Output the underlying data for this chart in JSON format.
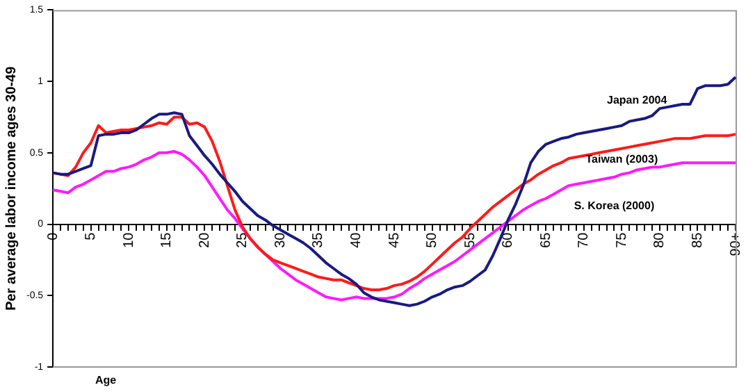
{
  "chart_data": {
    "type": "line",
    "xlabel": "Age",
    "ylabel": "Per average labor income ages 30-49",
    "categories": [
      "0",
      null,
      null,
      null,
      null,
      "5",
      null,
      null,
      null,
      null,
      "10",
      null,
      null,
      null,
      null,
      "15",
      null,
      null,
      null,
      null,
      "20",
      null,
      null,
      null,
      null,
      "25",
      null,
      null,
      null,
      null,
      "30",
      null,
      null,
      null,
      null,
      "35",
      null,
      null,
      null,
      null,
      "40",
      null,
      null,
      null,
      null,
      "45",
      null,
      null,
      null,
      null,
      "50",
      null,
      null,
      null,
      null,
      "55",
      null,
      null,
      null,
      null,
      "60",
      null,
      null,
      null,
      null,
      "65",
      null,
      null,
      null,
      null,
      "70",
      null,
      null,
      null,
      null,
      "75",
      null,
      null,
      null,
      null,
      "80",
      null,
      null,
      null,
      null,
      "85",
      null,
      null,
      null,
      null,
      "90+"
    ],
    "ylim": [
      -1,
      1.5
    ],
    "yticks": [
      -1,
      -0.5,
      0,
      0.5,
      1,
      1.5
    ],
    "grid": false,
    "legend": false,
    "marker": "none",
    "line_style": "solid",
    "series": [
      {
        "name": "Japan 2004",
        "color": "#1a1a80",
        "values": [
          0.36,
          0.35,
          0.35,
          0.37,
          0.39,
          0.41,
          0.62,
          0.63,
          0.63,
          0.64,
          0.64,
          0.66,
          0.7,
          0.74,
          0.77,
          0.77,
          0.78,
          0.77,
          0.62,
          0.55,
          0.48,
          0.42,
          0.35,
          0.29,
          0.23,
          0.16,
          0.11,
          0.06,
          0.03,
          -0.01,
          -0.04,
          -0.07,
          -0.1,
          -0.13,
          -0.17,
          -0.22,
          -0.27,
          -0.31,
          -0.35,
          -0.38,
          -0.42,
          -0.48,
          -0.51,
          -0.53,
          -0.54,
          -0.55,
          -0.56,
          -0.57,
          -0.56,
          -0.54,
          -0.51,
          -0.49,
          -0.46,
          -0.44,
          -0.43,
          -0.4,
          -0.36,
          -0.32,
          -0.22,
          -0.1,
          0.03,
          0.14,
          0.27,
          0.43,
          0.51,
          0.56,
          0.58,
          0.6,
          0.61,
          0.63,
          0.64,
          0.65,
          0.66,
          0.67,
          0.68,
          0.69,
          0.72,
          0.73,
          0.74,
          0.76,
          0.81,
          0.82,
          0.83,
          0.84,
          0.84,
          0.95,
          0.97,
          0.97,
          0.97,
          0.98,
          1.03
        ]
      },
      {
        "name": "Taiwan (2003)",
        "color": "#ff1a1a",
        "values": [
          0.36,
          0.35,
          0.34,
          0.4,
          0.5,
          0.57,
          0.69,
          0.64,
          0.65,
          0.66,
          0.66,
          0.67,
          0.68,
          0.69,
          0.71,
          0.7,
          0.75,
          0.75,
          0.7,
          0.71,
          0.68,
          0.58,
          0.44,
          0.27,
          0.1,
          -0.02,
          -0.1,
          -0.16,
          -0.21,
          -0.25,
          -0.27,
          -0.29,
          -0.31,
          -0.33,
          -0.35,
          -0.37,
          -0.38,
          -0.39,
          -0.39,
          -0.41,
          -0.43,
          -0.45,
          -0.46,
          -0.46,
          -0.45,
          -0.43,
          -0.42,
          -0.4,
          -0.37,
          -0.33,
          -0.28,
          -0.23,
          -0.18,
          -0.13,
          -0.09,
          -0.03,
          0.02,
          0.07,
          0.12,
          0.16,
          0.2,
          0.24,
          0.28,
          0.31,
          0.35,
          0.38,
          0.41,
          0.43,
          0.46,
          0.47,
          0.48,
          0.49,
          0.5,
          0.51,
          0.52,
          0.53,
          0.54,
          0.55,
          0.56,
          0.57,
          0.58,
          0.59,
          0.6,
          0.6,
          0.6,
          0.61,
          0.62,
          0.62,
          0.62,
          0.62,
          0.63
        ]
      },
      {
        "name": "S. Korea (2000)",
        "color": "#ff1aff",
        "values": [
          0.24,
          0.23,
          0.22,
          0.26,
          0.28,
          0.31,
          0.34,
          0.37,
          0.37,
          0.39,
          0.4,
          0.42,
          0.45,
          0.47,
          0.5,
          0.5,
          0.51,
          0.49,
          0.45,
          0.4,
          0.34,
          0.26,
          0.18,
          0.1,
          0.04,
          -0.03,
          -0.1,
          -0.16,
          -0.21,
          -0.26,
          -0.31,
          -0.35,
          -0.39,
          -0.42,
          -0.45,
          -0.48,
          -0.51,
          -0.52,
          -0.53,
          -0.52,
          -0.51,
          -0.52,
          -0.52,
          -0.52,
          -0.52,
          -0.51,
          -0.49,
          -0.45,
          -0.42,
          -0.38,
          -0.35,
          -0.32,
          -0.29,
          -0.26,
          -0.22,
          -0.18,
          -0.14,
          -0.1,
          -0.06,
          -0.02,
          0.02,
          0.06,
          0.1,
          0.13,
          0.16,
          0.18,
          0.21,
          0.24,
          0.27,
          0.28,
          0.29,
          0.3,
          0.31,
          0.32,
          0.33,
          0.35,
          0.36,
          0.38,
          0.39,
          0.4,
          0.4,
          0.41,
          0.42,
          0.43,
          0.43,
          0.43,
          0.43,
          0.43,
          0.43,
          0.43,
          0.43
        ]
      }
    ]
  }
}
